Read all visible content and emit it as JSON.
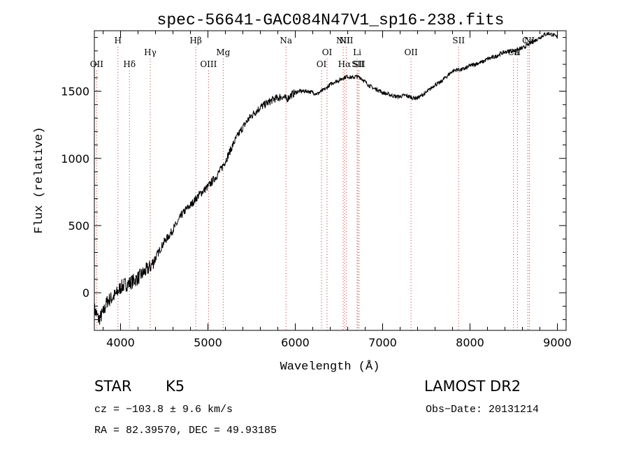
{
  "chart_data": {
    "type": "line",
    "title": "spec-56641-GAC084N47V1_sp16-238.fits",
    "xlabel": "Wavelength (Å)",
    "ylabel": "Flux (relative)",
    "xlim": [
      3700,
      9100
    ],
    "ylim": [
      -280,
      1950
    ],
    "xticks": [
      4000,
      5000,
      6000,
      7000,
      8000,
      9000
    ],
    "yticks": [
      0,
      500,
      1000,
      1500
    ],
    "grid": false,
    "series": [
      {
        "x": [
          3700,
          3750,
          3800,
          3850,
          3900,
          3950,
          4000,
          4050,
          4100,
          4150,
          4200,
          4250,
          4300,
          4350,
          4400,
          4450,
          4500,
          4550,
          4600,
          4650,
          4700,
          4750,
          4800,
          4850,
          4900,
          4950,
          5000,
          5050,
          5100,
          5150,
          5200,
          5250,
          5300,
          5350,
          5400,
          5450,
          5500,
          5550,
          5600,
          5650,
          5700,
          5750,
          5800,
          5850,
          5900,
          5950,
          6000,
          6050,
          6100,
          6150,
          6200,
          6250,
          6300,
          6350,
          6400,
          6450,
          6500,
          6550,
          6600,
          6650,
          6700,
          6750,
          6800,
          6850,
          6900,
          6950,
          7000,
          7050,
          7100,
          7150,
          7200,
          7250,
          7300,
          7350,
          7400,
          7450,
          7500,
          7550,
          7600,
          7650,
          7700,
          7750,
          7800,
          7850,
          7900,
          7950,
          8000,
          8050,
          8100,
          8150,
          8200,
          8250,
          8300,
          8350,
          8400,
          8450,
          8500,
          8550,
          8600,
          8650,
          8700,
          8750,
          8800,
          8850,
          8900,
          8950,
          9000
        ],
        "values": [
          -120,
          -200,
          -150,
          -60,
          -40,
          -10,
          40,
          60,
          70,
          90,
          110,
          140,
          170,
          200,
          260,
          320,
          380,
          420,
          470,
          520,
          580,
          620,
          650,
          690,
          730,
          760,
          790,
          830,
          870,
          920,
          980,
          1050,
          1120,
          1180,
          1230,
          1280,
          1320,
          1350,
          1380,
          1400,
          1420,
          1440,
          1450,
          1460,
          1440,
          1470,
          1490,
          1500,
          1500,
          1500,
          1490,
          1480,
          1500,
          1520,
          1550,
          1570,
          1580,
          1600,
          1610,
          1600,
          1610,
          1600,
          1570,
          1540,
          1520,
          1510,
          1490,
          1480,
          1470,
          1460,
          1460,
          1470,
          1460,
          1450,
          1450,
          1470,
          1490,
          1520,
          1550,
          1560,
          1590,
          1620,
          1650,
          1660,
          1660,
          1670,
          1690,
          1700,
          1710,
          1720,
          1740,
          1750,
          1760,
          1780,
          1790,
          1800,
          1800,
          1810,
          1820,
          1840,
          1860,
          1880,
          1900,
          1920,
          1930,
          1920,
          1900
        ]
      }
    ],
    "lines": [
      {
        "label": "OII",
        "x": 3727,
        "row": 3
      },
      {
        "label": "H",
        "x": 3970,
        "row": 1
      },
      {
        "label": "Hδ",
        "x": 4102,
        "row": 3
      },
      {
        "label": "Hγ",
        "x": 4340,
        "row": 2
      },
      {
        "label": "Hβ",
        "x": 4861,
        "row": 1
      },
      {
        "label": "OIII",
        "x": 5007,
        "row": 3
      },
      {
        "label": "Mg",
        "x": 5175,
        "row": 2
      },
      {
        "label": "Na",
        "x": 5894,
        "row": 1
      },
      {
        "label": "OI",
        "x": 6300,
        "row": 3
      },
      {
        "label": "OI",
        "x": 6364,
        "row": 2
      },
      {
        "label": "NII",
        "x": 6548,
        "row": 1
      },
      {
        "label": "Hα",
        "x": 6563,
        "row": 3
      },
      {
        "label": "NII",
        "x": 6583,
        "row": 1
      },
      {
        "label": "Li",
        "x": 6708,
        "row": 2
      },
      {
        "label": "SII",
        "x": 6716,
        "row": 3
      },
      {
        "label": "SII",
        "x": 6731,
        "row": 3
      },
      {
        "label": "OII",
        "x": 7325,
        "row": 2
      },
      {
        "label": "SII",
        "x": 7870,
        "row": 1
      },
      {
        "label": "Ca",
        "x": 8498,
        "row": 2
      },
      {
        "label": "II",
        "x": 8542,
        "row": 2
      },
      {
        "label": "Ca",
        "x": 8662,
        "row": 1
      },
      {
        "label": "NI",
        "x": 8680,
        "row": 1
      }
    ]
  },
  "footer": {
    "object_class": "STAR",
    "subclass": "K5",
    "survey": "LAMOST DR2",
    "cz": "cz = −103.8 ± 9.6 km/s",
    "obs_date": "Obs−Date: 20131214",
    "coords": "RA =  82.39570, DEC =  49.93185"
  }
}
